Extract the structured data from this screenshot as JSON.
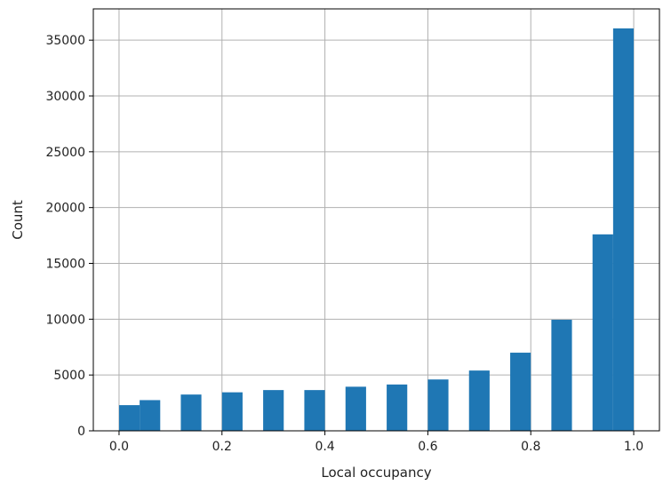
{
  "chart_data": {
    "type": "bar",
    "xlabel": "Local occupancy",
    "ylabel": "Count",
    "xlim": [
      -0.05,
      1.05
    ],
    "ylim": [
      0,
      37800
    ],
    "xticks": [
      0.0,
      0.2,
      0.4,
      0.6,
      0.8,
      1.0
    ],
    "xtick_labels": [
      "0.0",
      "0.2",
      "0.4",
      "0.6",
      "0.8",
      "1.0"
    ],
    "yticks": [
      0,
      5000,
      10000,
      15000,
      20000,
      25000,
      30000,
      35000
    ],
    "ytick_labels": [
      "0",
      "5000",
      "10000",
      "15000",
      "20000",
      "25000",
      "30000",
      "35000"
    ],
    "grid": true,
    "bar_color": "#1f77b4",
    "bins": [
      {
        "x0": 0.0,
        "x1": 0.04,
        "value": 2300
      },
      {
        "x0": 0.04,
        "x1": 0.08,
        "value": 2750
      },
      {
        "x0": 0.12,
        "x1": 0.16,
        "value": 3250
      },
      {
        "x0": 0.2,
        "x1": 0.24,
        "value": 3450
      },
      {
        "x0": 0.28,
        "x1": 0.32,
        "value": 3650
      },
      {
        "x0": 0.36,
        "x1": 0.4,
        "value": 3650
      },
      {
        "x0": 0.44,
        "x1": 0.48,
        "value": 3950
      },
      {
        "x0": 0.52,
        "x1": 0.56,
        "value": 4150
      },
      {
        "x0": 0.6,
        "x1": 0.64,
        "value": 4600
      },
      {
        "x0": 0.68,
        "x1": 0.72,
        "value": 5400
      },
      {
        "x0": 0.76,
        "x1": 0.8,
        "value": 7000
      },
      {
        "x0": 0.84,
        "x1": 0.88,
        "value": 9950
      },
      {
        "x0": 0.92,
        "x1": 0.96,
        "value": 17600
      },
      {
        "x0": 0.96,
        "x1": 1.0,
        "value": 36050
      }
    ]
  }
}
